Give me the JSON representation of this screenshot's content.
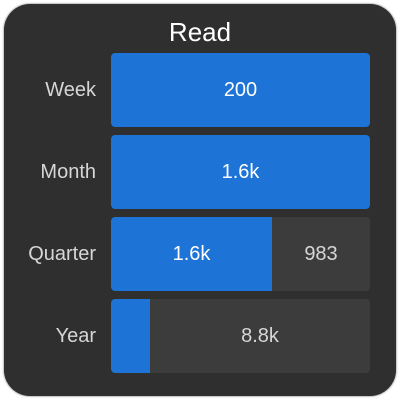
{
  "widget": {
    "title": "Read",
    "accent_color": "#1d73d6",
    "background_color": "#2f2f2f",
    "rows": [
      {
        "label": "Week",
        "fill_fraction": 1.0,
        "fill_value": "200",
        "remaining_value": ""
      },
      {
        "label": "Month",
        "fill_fraction": 1.0,
        "fill_value": "1.6k",
        "remaining_value": ""
      },
      {
        "label": "Quarter",
        "fill_fraction": 0.62,
        "fill_value": "1.6k",
        "remaining_value": "983"
      },
      {
        "label": "Year",
        "fill_fraction": 0.15,
        "fill_value": "",
        "remaining_value": "8.8k"
      }
    ]
  }
}
